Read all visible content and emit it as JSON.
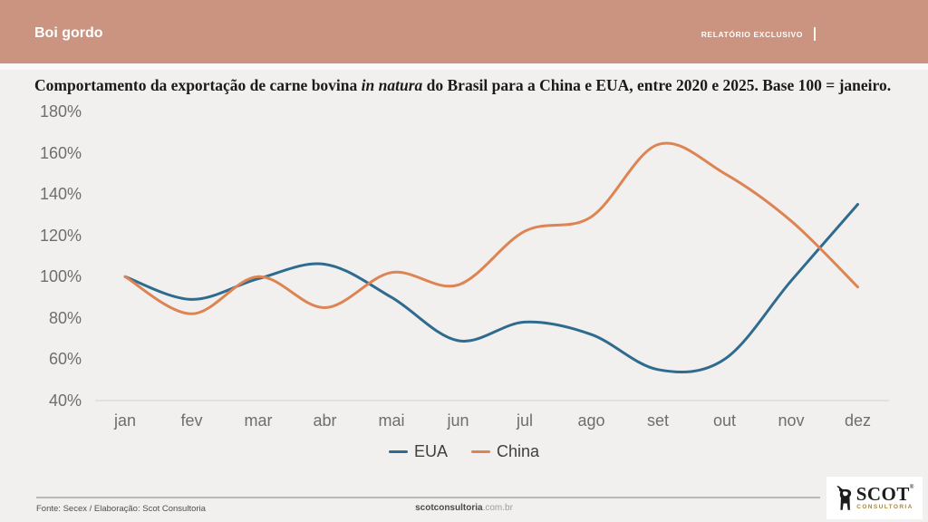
{
  "header": {
    "title": "Boi gordo",
    "badge": "RELATÓRIO EXCLUSIVO"
  },
  "chart_title": {
    "prefix": "Comportamento da exportação de carne bovina ",
    "italic": "in natura",
    "suffix": " do Brasil para a China e EUA, entre 2020 e 2025. Base 100 = janeiro."
  },
  "chart_data": {
    "type": "line",
    "categories": [
      "jan",
      "fev",
      "mar",
      "abr",
      "mai",
      "jun",
      "jul",
      "ago",
      "set",
      "out",
      "nov",
      "dez"
    ],
    "y_ticks": [
      "180%",
      "160%",
      "140%",
      "120%",
      "100%",
      "80%",
      "60%",
      "40%"
    ],
    "ylim": [
      40,
      180
    ],
    "grid": false,
    "legend_position": "bottom",
    "series": [
      {
        "name": "EUA",
        "color": "#2f6b8e",
        "values": [
          100,
          89,
          99,
          106,
          90,
          69,
          78,
          72,
          55,
          60,
          98,
          135
        ]
      },
      {
        "name": "China",
        "color": "#dd8452",
        "values": [
          100,
          82,
          100,
          85,
          102,
          96,
          122,
          129,
          164,
          150,
          127,
          95
        ]
      }
    ]
  },
  "footer": {
    "source": "Fonte: Secex / Elaboração: Scot Consultoria",
    "site_bold": "scotconsultoria",
    "site_rest": ".com.br",
    "logo_name": "SCOT",
    "logo_reg": "®",
    "logo_sub": "CONSULTORIA"
  },
  "colors": {
    "header_bg": "#cb9480",
    "page_bg": "#f1f0ee",
    "axis_line": "#dcdcdc",
    "tick_text": "#6e6e6e",
    "eua_line": "#2f6b8e",
    "china_line": "#dd8452"
  }
}
